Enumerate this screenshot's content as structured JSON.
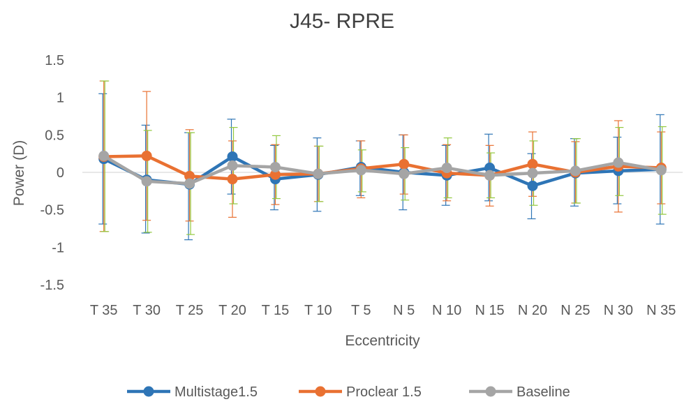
{
  "chart_data": {
    "type": "line",
    "title": "J45- RPRE",
    "xlabel": "Eccentricity",
    "ylabel": "Power (D)",
    "ylim": [
      -1.5,
      1.5
    ],
    "yticks": [
      "-1.5",
      "-1",
      "-0.5",
      "0",
      "0.5",
      "1",
      "1.5"
    ],
    "grid": false,
    "legend_position": "bottom",
    "categories": [
      "T 35",
      "T 30",
      "T 25",
      "T 20",
      "T 15",
      "T 10",
      "T 5",
      "N 5",
      "N 10",
      "N 15",
      "N 20",
      "N 25",
      "N 30",
      "N 35"
    ],
    "series": [
      {
        "name": "Multistage1.5",
        "color": "#2E75B6",
        "values": [
          0.18,
          -0.1,
          -0.16,
          0.21,
          -0.09,
          -0.03,
          0.07,
          0.0,
          -0.04,
          0.06,
          -0.18,
          -0.01,
          0.02,
          0.04
        ],
        "err_upper": [
          1.05,
          0.63,
          0.53,
          0.71,
          0.36,
          0.46,
          0.42,
          0.5,
          0.36,
          0.51,
          0.25,
          0.45,
          0.47,
          0.77
        ],
        "err_lower": [
          -0.69,
          -0.81,
          -0.9,
          -0.29,
          -0.5,
          -0.52,
          -0.31,
          -0.5,
          -0.44,
          -0.38,
          -0.62,
          -0.45,
          -0.42,
          -0.69
        ]
      },
      {
        "name": "Proclear 1.5",
        "color": "#E97132",
        "values": [
          0.21,
          0.22,
          -0.05,
          -0.09,
          -0.03,
          -0.02,
          0.05,
          0.11,
          -0.01,
          -0.04,
          0.11,
          0.0,
          0.08,
          0.06
        ],
        "err_upper": [
          1.22,
          1.08,
          0.57,
          0.42,
          0.37,
          0.35,
          0.42,
          0.5,
          0.37,
          0.36,
          0.54,
          0.41,
          0.69,
          0.54
        ],
        "err_lower": [
          -0.79,
          -0.64,
          -0.65,
          -0.6,
          -0.43,
          -0.39,
          -0.34,
          -0.29,
          -0.38,
          -0.45,
          -0.32,
          -0.41,
          -0.53,
          -0.42
        ]
      },
      {
        "name": "Baseline",
        "color": "#A5A5A5",
        "values": [
          0.22,
          -0.12,
          -0.15,
          0.09,
          0.07,
          -0.02,
          0.03,
          -0.02,
          0.06,
          -0.04,
          -0.01,
          0.02,
          0.13,
          0.03
        ],
        "err_upper": [
          1.22,
          0.56,
          0.53,
          0.6,
          0.49,
          0.35,
          0.3,
          0.33,
          0.46,
          0.26,
          0.42,
          0.45,
          0.6,
          0.61
        ],
        "err_lower": [
          -0.79,
          -0.8,
          -0.83,
          -0.42,
          -0.35,
          -0.39,
          -0.26,
          -0.37,
          -0.34,
          -0.34,
          -0.44,
          -0.41,
          -0.31,
          -0.56
        ],
        "err_color": "#92C83E"
      }
    ]
  }
}
